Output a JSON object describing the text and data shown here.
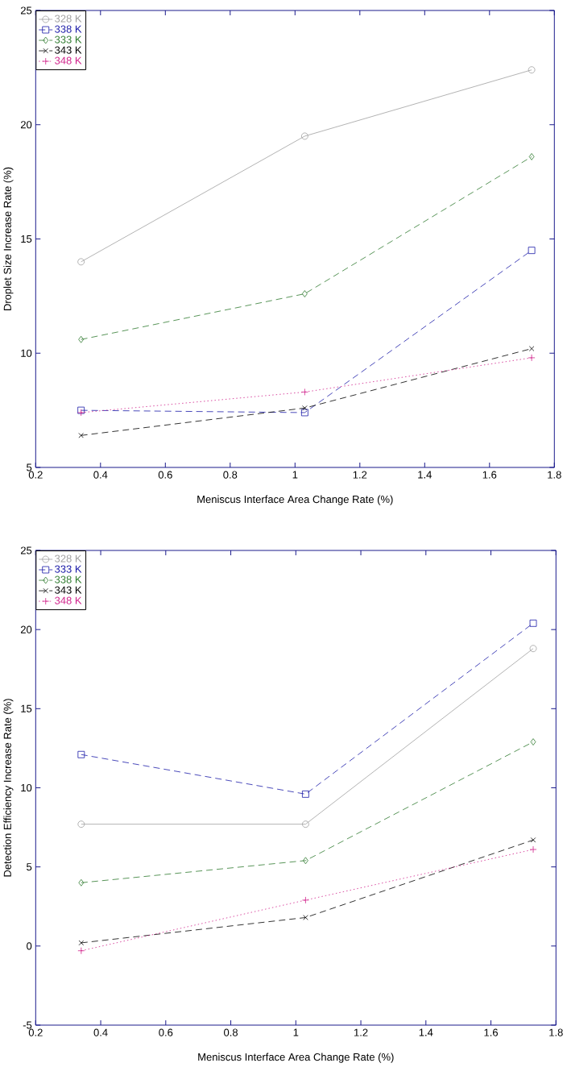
{
  "chart_data": [
    {
      "type": "line",
      "xlabel": "Meniscus Interface Area Change Rate (%)",
      "ylabel": "Droplet Size Increase Rate (%)",
      "x": [
        0.34,
        1.03,
        1.73
      ],
      "xlim": [
        0.2,
        1.8
      ],
      "xticks": [
        0.2,
        0.4,
        0.6,
        0.8,
        1,
        1.2,
        1.4,
        1.6,
        1.8
      ],
      "ylim": [
        5,
        25
      ],
      "yticks": [
        5,
        10,
        15,
        20,
        25
      ],
      "grid": false,
      "legend": "top left",
      "series": [
        {
          "name": "328 K",
          "color": "#a0a0a0",
          "marker": "circle",
          "line_style": "solid",
          "values": [
            14.0,
            19.5,
            22.4
          ]
        },
        {
          "name": "338 K",
          "color": "#1c1ca8",
          "marker": "square",
          "line_style": "dashed",
          "values": [
            7.5,
            7.4,
            14.5
          ]
        },
        {
          "name": "333 K",
          "color": "#2e7a2e",
          "marker": "diamond",
          "line_style": "dashed",
          "values": [
            10.6,
            12.6,
            18.6
          ]
        },
        {
          "name": "343 K",
          "color": "#000000",
          "marker": "cross",
          "line_style": "dashed",
          "values": [
            6.4,
            7.6,
            10.2
          ]
        },
        {
          "name": "348 K",
          "color": "#d0208a",
          "marker": "plus",
          "line_style": "dotted",
          "values": [
            7.4,
            8.3,
            9.8
          ]
        }
      ]
    },
    {
      "type": "line",
      "xlabel": "Meniscus Interface Area Change Rate (%)",
      "ylabel": "Detection Efficiency Increase Rate (%)",
      "x": [
        0.34,
        1.03,
        1.73
      ],
      "xlim": [
        0.2,
        1.8
      ],
      "xticks": [
        0.2,
        0.4,
        0.6,
        0.8,
        1,
        1.2,
        1.4,
        1.6,
        1.8
      ],
      "ylim": [
        -5,
        25
      ],
      "yticks": [
        -5,
        0,
        5,
        10,
        15,
        20,
        25
      ],
      "grid": false,
      "legend": "top left",
      "series": [
        {
          "name": "328 K",
          "color": "#a0a0a0",
          "marker": "circle",
          "line_style": "solid",
          "values": [
            7.7,
            7.7,
            18.8
          ]
        },
        {
          "name": "333 K",
          "color": "#1c1ca8",
          "marker": "square",
          "line_style": "dashed",
          "values": [
            12.1,
            9.6,
            20.4
          ]
        },
        {
          "name": "338 K",
          "color": "#2e7a2e",
          "marker": "diamond",
          "line_style": "dashed",
          "values": [
            4.0,
            5.4,
            12.9
          ]
        },
        {
          "name": "343 K",
          "color": "#000000",
          "marker": "cross",
          "line_style": "dashed",
          "values": [
            0.2,
            1.8,
            6.7
          ]
        },
        {
          "name": "348 K",
          "color": "#d0208a",
          "marker": "plus",
          "line_style": "dotted",
          "values": [
            -0.3,
            2.9,
            6.1
          ]
        }
      ]
    }
  ]
}
